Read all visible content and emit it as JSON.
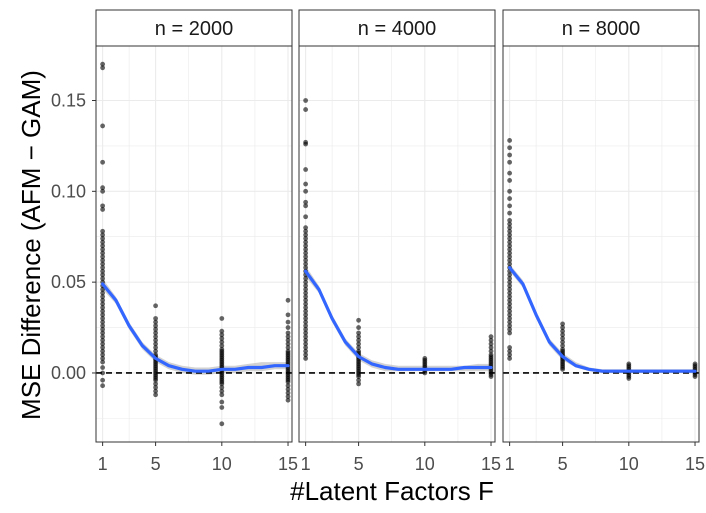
{
  "chart_data": {
    "type": "scatter",
    "xlabel": "#Latent Factors F",
    "ylabel": "MSE Difference (AFM − GAM)",
    "x_ticks": [
      1,
      5,
      10,
      15
    ],
    "x_tick_labels": [
      "1",
      "5",
      "10",
      "15"
    ],
    "xlim": [
      0.5,
      15.3
    ],
    "y_ticks": [
      0.0,
      0.05,
      0.1,
      0.15
    ],
    "y_tick_labels": [
      "0.00",
      "0.05",
      "0.10",
      "0.15"
    ],
    "ylim": [
      -0.038,
      0.18
    ],
    "reference_line": {
      "y": 0,
      "style": "dashed"
    },
    "colors": {
      "points": "#000000",
      "smooth": "#3366ff",
      "band": "#bfbfbf",
      "strip_fill": "#ffffff",
      "grid": "#ebebeb"
    },
    "panels": [
      {
        "label": "n = 2000",
        "smooth": [
          {
            "x": 1,
            "y": 0.049,
            "lo": 0.046,
            "hi": 0.052
          },
          {
            "x": 2,
            "y": 0.04,
            "lo": 0.038,
            "hi": 0.042
          },
          {
            "x": 3,
            "y": 0.026,
            "lo": 0.024,
            "hi": 0.028
          },
          {
            "x": 4,
            "y": 0.015,
            "lo": 0.013,
            "hi": 0.017
          },
          {
            "x": 5,
            "y": 0.008,
            "lo": 0.006,
            "hi": 0.01
          },
          {
            "x": 6,
            "y": 0.004,
            "lo": 0.002,
            "hi": 0.006
          },
          {
            "x": 7,
            "y": 0.002,
            "lo": 0.0,
            "hi": 0.004
          },
          {
            "x": 8,
            "y": 0.001,
            "lo": -0.001,
            "hi": 0.003
          },
          {
            "x": 9,
            "y": 0.001,
            "lo": -0.001,
            "hi": 0.003
          },
          {
            "x": 10,
            "y": 0.002,
            "lo": 0.0,
            "hi": 0.004
          },
          {
            "x": 11,
            "y": 0.002,
            "lo": 0.0,
            "hi": 0.004
          },
          {
            "x": 12,
            "y": 0.003,
            "lo": 0.001,
            "hi": 0.005
          },
          {
            "x": 13,
            "y": 0.003,
            "lo": 0.001,
            "hi": 0.006
          },
          {
            "x": 14,
            "y": 0.004,
            "lo": 0.002,
            "hi": 0.006
          },
          {
            "x": 15,
            "y": 0.004,
            "lo": 0.002,
            "hi": 0.006
          }
        ],
        "points": {
          "1": [
            0.17,
            0.168,
            0.136,
            0.116,
            0.102,
            0.1,
            0.092,
            0.09,
            0.078,
            0.076,
            0.074,
            0.072,
            0.07,
            0.068,
            0.066,
            0.064,
            0.062,
            0.06,
            0.058,
            0.056,
            0.054,
            0.052,
            0.05,
            0.048,
            0.046,
            0.044,
            0.042,
            0.04,
            0.038,
            0.036,
            0.034,
            0.032,
            0.03,
            0.028,
            0.026,
            0.024,
            0.022,
            0.02,
            0.018,
            0.016,
            0.014,
            0.012,
            0.01,
            0.008,
            0.006,
            0.003,
            0.0,
            -0.004,
            -0.007
          ],
          "5": [
            0.037,
            0.03,
            0.028,
            0.026,
            0.024,
            0.022,
            0.02,
            0.018,
            0.016,
            0.014,
            0.012,
            0.01,
            0.009,
            0.008,
            0.007,
            0.006,
            0.005,
            0.004,
            0.003,
            0.002,
            0.001,
            0.0,
            -0.001,
            -0.002,
            -0.003,
            -0.004,
            -0.006,
            -0.008,
            -0.01,
            -0.012
          ],
          "10": [
            0.03,
            0.023,
            0.021,
            0.019,
            0.017,
            0.015,
            0.013,
            0.012,
            0.011,
            0.01,
            0.009,
            0.008,
            0.007,
            0.006,
            0.005,
            0.004,
            0.003,
            0.002,
            0.001,
            0.0,
            -0.001,
            -0.002,
            -0.003,
            -0.004,
            -0.005,
            -0.006,
            -0.008,
            -0.01,
            -0.012,
            -0.016,
            -0.019,
            -0.028
          ],
          "15": [
            0.04,
            0.032,
            0.028,
            0.025,
            0.022,
            0.02,
            0.018,
            0.016,
            0.014,
            0.012,
            0.011,
            0.01,
            0.009,
            0.008,
            0.007,
            0.006,
            0.005,
            0.004,
            0.003,
            0.002,
            0.001,
            0.0,
            -0.001,
            -0.002,
            -0.003,
            -0.004,
            -0.005,
            -0.007,
            -0.009,
            -0.011,
            -0.013,
            -0.015
          ]
        }
      },
      {
        "label": "n = 4000",
        "smooth": [
          {
            "x": 1,
            "y": 0.056,
            "lo": 0.053,
            "hi": 0.059
          },
          {
            "x": 2,
            "y": 0.046,
            "lo": 0.044,
            "hi": 0.048
          },
          {
            "x": 3,
            "y": 0.03,
            "lo": 0.028,
            "hi": 0.032
          },
          {
            "x": 4,
            "y": 0.017,
            "lo": 0.015,
            "hi": 0.019
          },
          {
            "x": 5,
            "y": 0.009,
            "lo": 0.007,
            "hi": 0.011
          },
          {
            "x": 6,
            "y": 0.005,
            "lo": 0.003,
            "hi": 0.007
          },
          {
            "x": 7,
            "y": 0.003,
            "lo": 0.001,
            "hi": 0.005
          },
          {
            "x": 8,
            "y": 0.002,
            "lo": 0.001,
            "hi": 0.004
          },
          {
            "x": 9,
            "y": 0.002,
            "lo": 0.001,
            "hi": 0.004
          },
          {
            "x": 10,
            "y": 0.002,
            "lo": 0.001,
            "hi": 0.004
          },
          {
            "x": 11,
            "y": 0.002,
            "lo": 0.001,
            "hi": 0.004
          },
          {
            "x": 12,
            "y": 0.002,
            "lo": 0.001,
            "hi": 0.004
          },
          {
            "x": 13,
            "y": 0.003,
            "lo": 0.001,
            "hi": 0.004
          },
          {
            "x": 14,
            "y": 0.003,
            "lo": 0.001,
            "hi": 0.005
          },
          {
            "x": 15,
            "y": 0.003,
            "lo": 0.001,
            "hi": 0.005
          }
        ],
        "points": {
          "1": [
            0.15,
            0.145,
            0.127,
            0.126,
            0.112,
            0.104,
            0.1,
            0.094,
            0.092,
            0.086,
            0.08,
            0.078,
            0.076,
            0.074,
            0.072,
            0.07,
            0.068,
            0.066,
            0.064,
            0.062,
            0.06,
            0.058,
            0.056,
            0.054,
            0.052,
            0.05,
            0.048,
            0.046,
            0.044,
            0.042,
            0.04,
            0.038,
            0.036,
            0.034,
            0.032,
            0.03,
            0.028,
            0.026,
            0.024,
            0.022,
            0.02,
            0.018,
            0.016,
            0.014,
            0.012,
            0.01,
            0.008
          ],
          "5": [
            0.029,
            0.025,
            0.022,
            0.02,
            0.018,
            0.016,
            0.014,
            0.012,
            0.011,
            0.01,
            0.009,
            0.008,
            0.007,
            0.006,
            0.005,
            0.004,
            0.003,
            0.002,
            0.001,
            0.0,
            -0.001,
            -0.002,
            -0.004,
            -0.006
          ],
          "10": [
            0.008,
            0.007,
            0.006,
            0.005,
            0.004,
            0.003,
            0.002,
            0.001,
            0.0
          ],
          "15": [
            0.02,
            0.018,
            0.016,
            0.014,
            0.012,
            0.01,
            0.009,
            0.008,
            0.007,
            0.006,
            0.005,
            0.004,
            0.003,
            0.002,
            0.001,
            0.0,
            -0.001,
            -0.002
          ]
        }
      },
      {
        "label": "n = 8000",
        "smooth": [
          {
            "x": 1,
            "y": 0.058,
            "lo": 0.056,
            "hi": 0.06
          },
          {
            "x": 2,
            "y": 0.049,
            "lo": 0.047,
            "hi": 0.051
          },
          {
            "x": 3,
            "y": 0.032,
            "lo": 0.03,
            "hi": 0.034
          },
          {
            "x": 4,
            "y": 0.017,
            "lo": 0.015,
            "hi": 0.019
          },
          {
            "x": 5,
            "y": 0.009,
            "lo": 0.007,
            "hi": 0.011
          },
          {
            "x": 6,
            "y": 0.004,
            "lo": 0.003,
            "hi": 0.006
          },
          {
            "x": 7,
            "y": 0.002,
            "lo": 0.001,
            "hi": 0.003
          },
          {
            "x": 8,
            "y": 0.001,
            "lo": 0.0,
            "hi": 0.002
          },
          {
            "x": 9,
            "y": 0.001,
            "lo": 0.0,
            "hi": 0.002
          },
          {
            "x": 10,
            "y": 0.001,
            "lo": 0.0,
            "hi": 0.002
          },
          {
            "x": 11,
            "y": 0.001,
            "lo": 0.0,
            "hi": 0.002
          },
          {
            "x": 12,
            "y": 0.001,
            "lo": 0.0,
            "hi": 0.002
          },
          {
            "x": 13,
            "y": 0.001,
            "lo": 0.0,
            "hi": 0.002
          },
          {
            "x": 14,
            "y": 0.001,
            "lo": 0.0,
            "hi": 0.002
          },
          {
            "x": 15,
            "y": 0.001,
            "lo": 0.0,
            "hi": 0.002
          }
        ],
        "points": {
          "1": [
            0.128,
            0.124,
            0.12,
            0.116,
            0.11,
            0.106,
            0.1,
            0.096,
            0.092,
            0.088,
            0.084,
            0.082,
            0.08,
            0.078,
            0.076,
            0.074,
            0.072,
            0.07,
            0.068,
            0.066,
            0.064,
            0.062,
            0.06,
            0.058,
            0.056,
            0.054,
            0.052,
            0.05,
            0.048,
            0.046,
            0.044,
            0.042,
            0.04,
            0.038,
            0.036,
            0.034,
            0.032,
            0.03,
            0.028,
            0.026,
            0.024,
            0.022,
            0.014,
            0.012,
            0.01,
            0.008
          ],
          "5": [
            0.027,
            0.025,
            0.023,
            0.021,
            0.019,
            0.017,
            0.015,
            0.013,
            0.012,
            0.011,
            0.01,
            0.009,
            0.008,
            0.007,
            0.006,
            0.005,
            0.004,
            0.003,
            0.002
          ],
          "10": [
            0.005,
            0.004,
            0.003,
            0.002,
            0.001,
            0.0,
            -0.001,
            -0.002,
            -0.003
          ],
          "15": [
            0.005,
            0.004,
            0.003,
            0.002,
            0.001,
            0.0,
            -0.001,
            -0.002
          ]
        }
      }
    ]
  }
}
